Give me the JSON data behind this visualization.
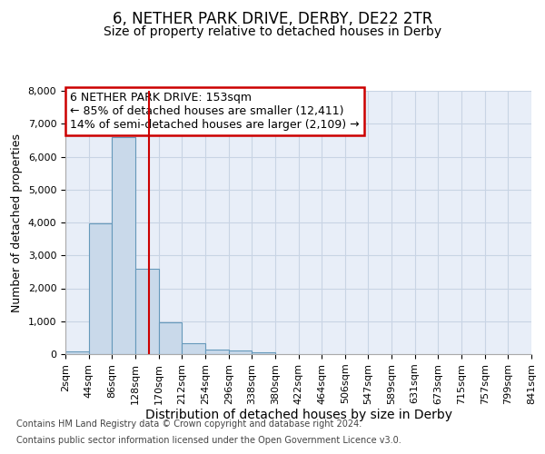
{
  "title": "6, NETHER PARK DRIVE, DERBY, DE22 2TR",
  "subtitle": "Size of property relative to detached houses in Derby",
  "xlabel": "Distribution of detached houses by size in Derby",
  "ylabel": "Number of detached properties",
  "footnote1": "Contains HM Land Registry data © Crown copyright and database right 2024.",
  "footnote2": "Contains public sector information licensed under the Open Government Licence v3.0.",
  "annotation_title": "6 NETHER PARK DRIVE: 153sqm",
  "annotation_line1": "← 85% of detached houses are smaller (12,411)",
  "annotation_line2": "14% of semi-detached houses are larger (2,109) →",
  "bin_starts": [
    2,
    44,
    86,
    128,
    170,
    212,
    254,
    296,
    338,
    380,
    422,
    464,
    506,
    547,
    589,
    631,
    673,
    715,
    757,
    799,
    841
  ],
  "bar_heights": [
    80,
    3980,
    6580,
    2600,
    960,
    340,
    140,
    100,
    50,
    0,
    0,
    0,
    0,
    0,
    0,
    0,
    0,
    0,
    0,
    0,
    0
  ],
  "bar_color": "#c9d9ea",
  "bar_edge_color": "#6699bb",
  "vline_color": "#cc0000",
  "vline_x": 153,
  "annotation_box_color": "#cc0000",
  "grid_color": "#c8d4e4",
  "bg_color": "#e8eef8",
  "ylim": [
    0,
    8000
  ],
  "yticks": [
    0,
    1000,
    2000,
    3000,
    4000,
    5000,
    6000,
    7000,
    8000
  ],
  "xtick_labels": [
    "2sqm",
    "44sqm",
    "86sqm",
    "128sqm",
    "170sqm",
    "212sqm",
    "254sqm",
    "296sqm",
    "338sqm",
    "380sqm",
    "422sqm",
    "464sqm",
    "506sqm",
    "547sqm",
    "589sqm",
    "631sqm",
    "673sqm",
    "715sqm",
    "757sqm",
    "799sqm",
    "841sqm"
  ],
  "title_fontsize": 12,
  "subtitle_fontsize": 10,
  "ylabel_fontsize": 9,
  "xlabel_fontsize": 10,
  "tick_fontsize": 8,
  "annotation_fontsize": 9,
  "footnote_fontsize": 7
}
